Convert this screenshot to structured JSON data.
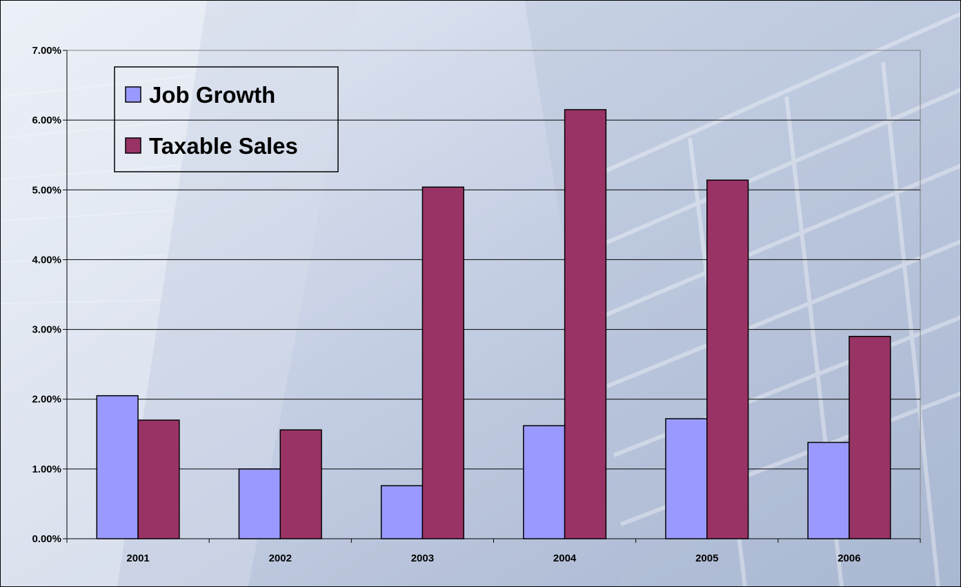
{
  "chart_data": {
    "type": "bar",
    "categories": [
      "2001",
      "2002",
      "2003",
      "2004",
      "2005",
      "2006"
    ],
    "series": [
      {
        "name": "Job Growth",
        "values": [
          2.05,
          1.0,
          0.76,
          1.62,
          1.72,
          1.38
        ],
        "color": "#9999ff"
      },
      {
        "name": "Taxable Sales",
        "values": [
          1.7,
          1.56,
          5.04,
          6.15,
          5.14,
          2.9
        ],
        "color": "#993366"
      }
    ],
    "ylim": [
      0,
      7
    ],
    "y_ticks": [
      "0.00%",
      "1.00%",
      "2.00%",
      "3.00%",
      "4.00%",
      "5.00%",
      "6.00%",
      "7.00%"
    ],
    "title": "",
    "xlabel": "",
    "ylabel": "",
    "grid": true,
    "legend_position": "top-left"
  }
}
